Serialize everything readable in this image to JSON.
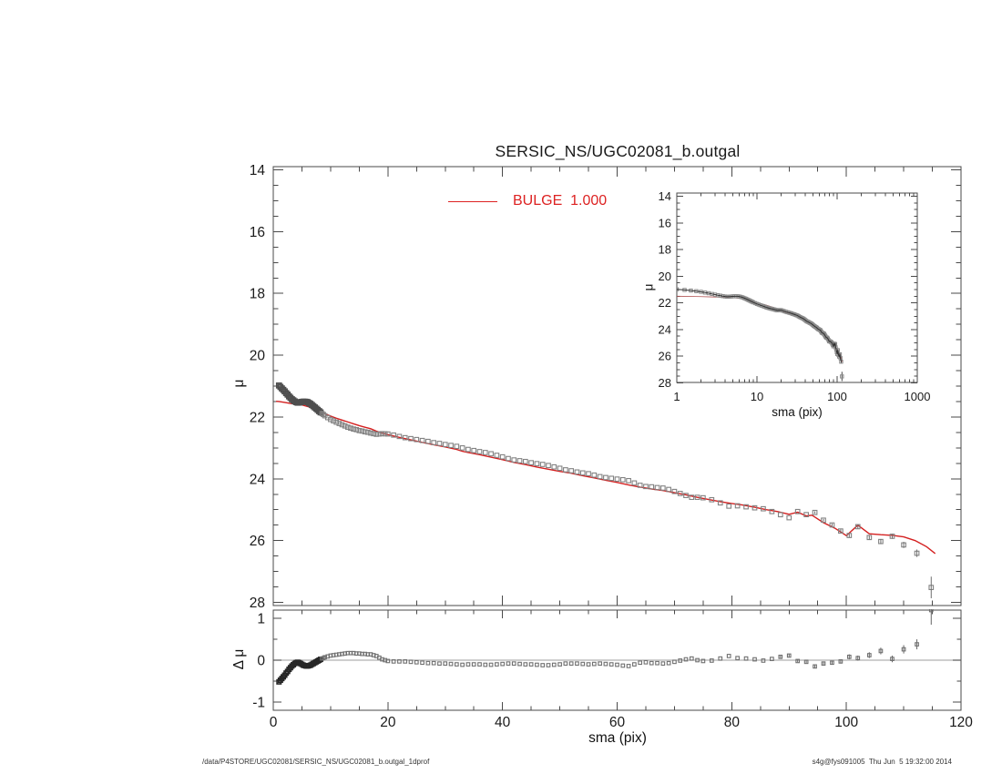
{
  "title": "SERSIC_NS/UGC02081_b.outgal",
  "legend": {
    "label": "BULGE  1.000",
    "color": "#d22222"
  },
  "footer": {
    "left": "/data/P4STORE/UGC02081/SERSIC_NS/UGC02081_b.outgal_1dprof",
    "right": "s4g@fys091005  Thu Jun  5 19:32:00 2014"
  },
  "colors": {
    "model": "#d42020",
    "data": "#828282",
    "dense": "#4e4e4e",
    "inset_line": "#2f2f2f",
    "inset_model": "#b05050",
    "axis": "#4a4a4a",
    "zero_line": "#b0b0b0"
  },
  "chart_data": {
    "type": "scatter",
    "title": "SERSIC_NS/UGC02081_b.outgal",
    "legend_entries": [
      {
        "label": "BULGE  1.000",
        "style": "line",
        "color": "#d42020"
      }
    ],
    "main_axis": {
      "xlabel": "sma (pix)",
      "ylabel": "μ",
      "xlim": [
        0,
        120
      ],
      "xticks": [
        0,
        20,
        40,
        60,
        80,
        100,
        120
      ],
      "xminor_step": 5,
      "ylim": [
        14,
        28
      ],
      "yticks": [
        14,
        16,
        18,
        20,
        22,
        24,
        26,
        28
      ],
      "yminor_step": 0.5,
      "y_inverted": true,
      "grid": false
    },
    "inset_axis": {
      "xlabel": "sma (pix)",
      "ylabel": "μ",
      "xlog": true,
      "xlim": [
        1,
        1000
      ],
      "xticks": [
        1,
        10,
        100,
        1000
      ],
      "ylim": [
        14,
        28
      ],
      "yticks": [
        14,
        16,
        18,
        20,
        22,
        24,
        26,
        28
      ],
      "yminor_step": 0.5,
      "y_inverted": true,
      "grid": false
    },
    "residual_axis": {
      "xlabel": "sma (pix)",
      "ylabel": "Δ μ",
      "xlim": [
        0,
        120
      ],
      "xticks": [
        0,
        20,
        40,
        60,
        80,
        100,
        120
      ],
      "xminor_step": 5,
      "ylim": [
        -1.2,
        1.2
      ],
      "yticks": [
        -1,
        0,
        1
      ],
      "yminor_step": 0.5,
      "zero_line": true
    },
    "model": [
      [
        0.5,
        21.49
      ],
      [
        1,
        21.5
      ],
      [
        2,
        21.53
      ],
      [
        3,
        21.56
      ],
      [
        4,
        21.58
      ],
      [
        5,
        21.61
      ],
      [
        6,
        21.66
      ],
      [
        7,
        21.73
      ],
      [
        8,
        21.81
      ],
      [
        9,
        21.89
      ],
      [
        10,
        21.97
      ],
      [
        11,
        22.04
      ],
      [
        12,
        22.1
      ],
      [
        13,
        22.16
      ],
      [
        14,
        22.22
      ],
      [
        15,
        22.28
      ],
      [
        16,
        22.33
      ],
      [
        17,
        22.38
      ],
      [
        18,
        22.46
      ],
      [
        19,
        22.52
      ],
      [
        20,
        22.57
      ],
      [
        22,
        22.66
      ],
      [
        24,
        22.74
      ],
      [
        26,
        22.82
      ],
      [
        28,
        22.9
      ],
      [
        30,
        22.97
      ],
      [
        32,
        23.05
      ],
      [
        33,
        23.11
      ],
      [
        34,
        23.15
      ],
      [
        36,
        23.22
      ],
      [
        38,
        23.3
      ],
      [
        40,
        23.38
      ],
      [
        42,
        23.47
      ],
      [
        44,
        23.54
      ],
      [
        46,
        23.62
      ],
      [
        48,
        23.69
      ],
      [
        50,
        23.76
      ],
      [
        52,
        23.82
      ],
      [
        54,
        23.9
      ],
      [
        56,
        23.97
      ],
      [
        58,
        24.05
      ],
      [
        60,
        24.12
      ],
      [
        62,
        24.2
      ],
      [
        64,
        24.27
      ],
      [
        66,
        24.33
      ],
      [
        68,
        24.38
      ],
      [
        70,
        24.45
      ],
      [
        72,
        24.52
      ],
      [
        74,
        24.6
      ],
      [
        76,
        24.67
      ],
      [
        78,
        24.74
      ],
      [
        80,
        24.8
      ],
      [
        82,
        24.85
      ],
      [
        84,
        24.92
      ],
      [
        86,
        25.0
      ],
      [
        88,
        25.06
      ],
      [
        90,
        25.15
      ],
      [
        91.5,
        25.08
      ],
      [
        93,
        25.2
      ],
      [
        94,
        25.18
      ],
      [
        96,
        25.42
      ],
      [
        98,
        25.6
      ],
      [
        100,
        25.84
      ],
      [
        102,
        25.5
      ],
      [
        104,
        25.78
      ],
      [
        106,
        25.81
      ],
      [
        108,
        25.83
      ],
      [
        110,
        25.88
      ],
      [
        112,
        26.0
      ],
      [
        114,
        26.2
      ],
      [
        115.5,
        26.42
      ]
    ],
    "points": [
      [
        1,
        -0.52
      ],
      [
        1.25,
        -0.48
      ],
      [
        1.5,
        -0.44
      ],
      [
        1.75,
        -0.4
      ],
      [
        2,
        -0.36
      ],
      [
        2.25,
        -0.31
      ],
      [
        2.5,
        -0.27
      ],
      [
        2.75,
        -0.22
      ],
      [
        3,
        -0.18
      ],
      [
        3.25,
        -0.14
      ],
      [
        3.5,
        -0.11
      ],
      [
        3.75,
        -0.08
      ],
      [
        4,
        -0.06
      ],
      [
        4.25,
        -0.05
      ],
      [
        4.5,
        -0.06
      ],
      [
        4.75,
        -0.08
      ],
      [
        5,
        -0.1
      ],
      [
        5.25,
        -0.12
      ],
      [
        5.5,
        -0.13
      ],
      [
        5.75,
        -0.14
      ],
      [
        6,
        -0.14
      ],
      [
        6.25,
        -0.13
      ],
      [
        6.5,
        -0.12
      ],
      [
        6.75,
        -0.1
      ],
      [
        7,
        -0.08
      ],
      [
        7.25,
        -0.06
      ],
      [
        7.5,
        -0.04
      ],
      [
        7.75,
        -0.02
      ],
      [
        8,
        0.0
      ],
      [
        8.25,
        0.02
      ],
      [
        8.5,
        0.04
      ],
      [
        8.75,
        0.05
      ],
      [
        9,
        0.07
      ],
      [
        9.5,
        0.09
      ],
      [
        10,
        0.11
      ],
      [
        10.5,
        0.12
      ],
      [
        11,
        0.13
      ],
      [
        11.5,
        0.14
      ],
      [
        12,
        0.15
      ],
      [
        12.5,
        0.16
      ],
      [
        13,
        0.17
      ],
      [
        13.5,
        0.17
      ],
      [
        14,
        0.17
      ],
      [
        14.5,
        0.16
      ],
      [
        15,
        0.16
      ],
      [
        15.5,
        0.15
      ],
      [
        16,
        0.15
      ],
      [
        16.5,
        0.14
      ],
      [
        17,
        0.14
      ],
      [
        17.5,
        0.12
      ],
      [
        18,
        0.1
      ],
      [
        18.5,
        0.06
      ],
      [
        19,
        0.02
      ],
      [
        19.5,
        0.0
      ],
      [
        20,
        -0.02
      ],
      [
        21,
        -0.03
      ],
      [
        22,
        -0.03
      ],
      [
        23,
        -0.03
      ],
      [
        24,
        -0.04
      ],
      [
        25,
        -0.05
      ],
      [
        26,
        -0.06
      ],
      [
        27,
        -0.07
      ],
      [
        28,
        -0.07
      ],
      [
        29,
        -0.08
      ],
      [
        30,
        -0.08
      ],
      [
        31,
        -0.09
      ],
      [
        32,
        -0.1
      ],
      [
        33,
        -0.11
      ],
      [
        34,
        -0.1
      ],
      [
        35,
        -0.1
      ],
      [
        36,
        -0.1
      ],
      [
        37,
        -0.11
      ],
      [
        38,
        -0.11
      ],
      [
        39,
        -0.1
      ],
      [
        40,
        -0.09
      ],
      [
        41,
        -0.08
      ],
      [
        42,
        -0.08
      ],
      [
        43,
        -0.09
      ],
      [
        44,
        -0.1
      ],
      [
        45,
        -0.1
      ],
      [
        46,
        -0.11
      ],
      [
        47,
        -0.12
      ],
      [
        48,
        -0.12
      ],
      [
        49,
        -0.11
      ],
      [
        50,
        -0.1
      ],
      [
        51,
        -0.08
      ],
      [
        52,
        -0.08
      ],
      [
        53,
        -0.08
      ],
      [
        54,
        -0.09
      ],
      [
        55,
        -0.1
      ],
      [
        56,
        -0.09
      ],
      [
        57,
        -0.08
      ],
      [
        58,
        -0.09
      ],
      [
        59,
        -0.1
      ],
      [
        60,
        -0.11
      ],
      [
        61,
        -0.13
      ],
      [
        62,
        -0.14
      ],
      [
        63,
        -0.1
      ],
      [
        64,
        -0.06
      ],
      [
        65,
        -0.05
      ],
      [
        66,
        -0.07
      ],
      [
        67,
        -0.07
      ],
      [
        68,
        -0.08
      ],
      [
        69,
        -0.07
      ],
      [
        70,
        -0.04
      ],
      [
        71,
        -0.01
      ],
      [
        72,
        0.02
      ],
      [
        73,
        0.04
      ],
      [
        74,
        0.0
      ],
      [
        75,
        -0.02
      ],
      [
        76.5,
        -0.01
      ],
      [
        78,
        0.04
      ],
      [
        79.5,
        0.1
      ],
      [
        81,
        0.05
      ],
      [
        82.5,
        0.04
      ],
      [
        84,
        0.02
      ],
      [
        85.5,
        -0.01,
        0.02
      ],
      [
        87,
        0.03,
        0.02
      ],
      [
        88.5,
        0.08,
        0.03
      ],
      [
        90,
        0.11,
        0.03
      ],
      [
        91.5,
        -0.02,
        0.03
      ],
      [
        93,
        -0.04,
        0.03
      ],
      [
        94.5,
        -0.15,
        0.04
      ],
      [
        96,
        -0.08,
        0.04
      ],
      [
        97.5,
        -0.06,
        0.05
      ],
      [
        99,
        -0.03,
        0.05
      ],
      [
        100.5,
        0.08,
        0.06
      ],
      [
        102,
        0.05,
        0.06
      ],
      [
        104,
        0.12,
        0.07
      ],
      [
        106,
        0.22,
        0.08
      ],
      [
        108,
        0.03,
        0.08
      ],
      [
        110,
        0.26,
        0.1
      ],
      [
        112.3,
        0.38,
        0.12
      ],
      [
        114.8,
        1.2,
        0.35
      ]
    ]
  }
}
